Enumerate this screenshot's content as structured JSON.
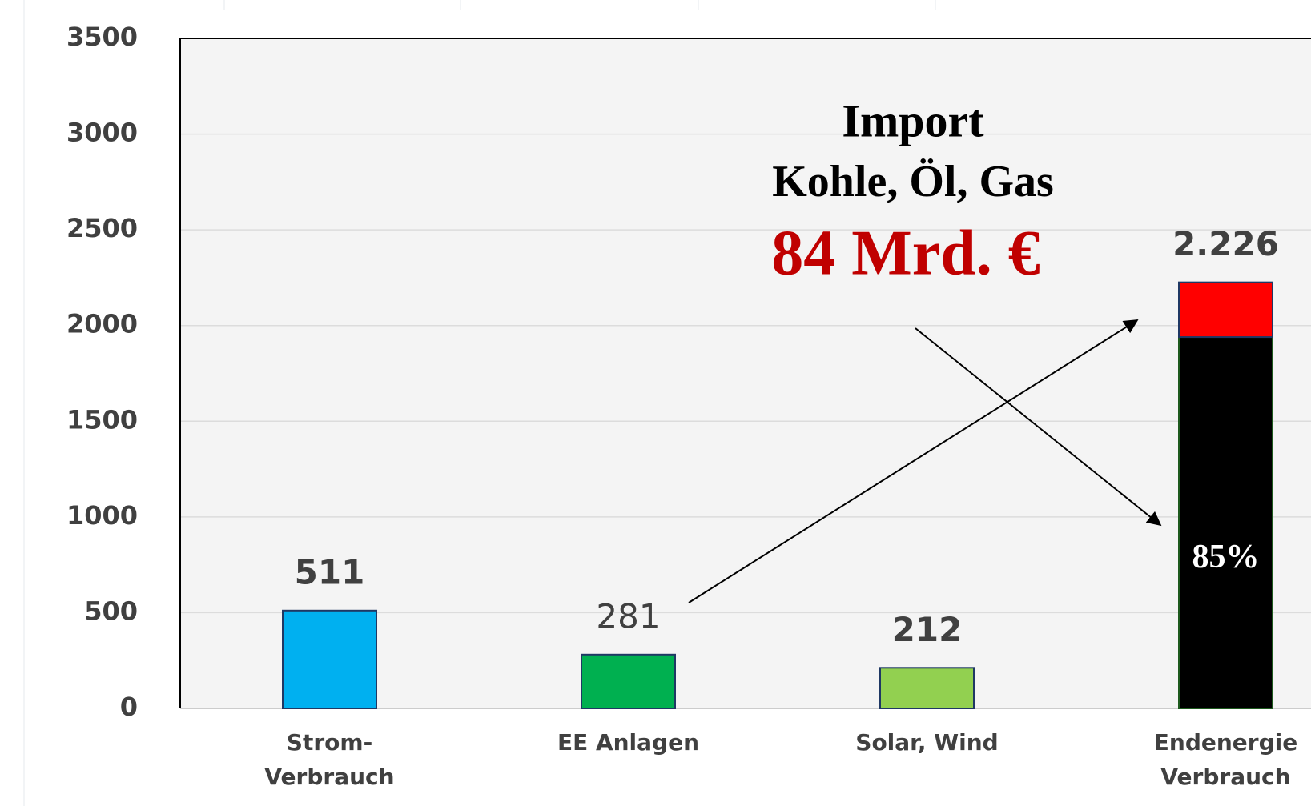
{
  "chart_data": {
    "type": "bar",
    "categories": [
      [
        "Strom-",
        "Verbrauch"
      ],
      [
        "EE Anlagen"
      ],
      [
        "Solar, Wind"
      ],
      [
        "Endenergie",
        "Verbrauch"
      ]
    ],
    "series": [
      {
        "colors": [
          "#00b0f0",
          "#00b050",
          "#92d050",
          "#000000"
        ],
        "values": [
          511,
          281,
          212,
          1940
        ]
      },
      {
        "color": "#ff0000",
        "values": [
          null,
          null,
          null,
          286
        ]
      }
    ],
    "ylim": [
      0,
      3500
    ],
    "yticks": [
      0,
      500,
      1000,
      1500,
      2000,
      2500,
      3000,
      3500
    ],
    "grid": true,
    "annotations": [
      "Import",
      "Kohle, Öl, Gas",
      "84 Mrd. €",
      "85%",
      "2.226"
    ]
  }
}
